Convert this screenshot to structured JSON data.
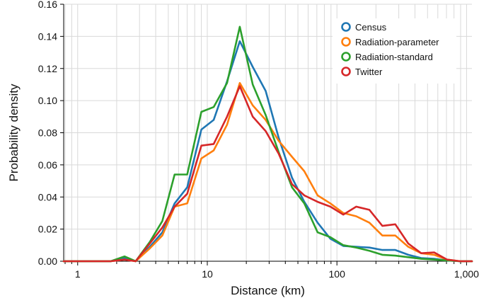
{
  "chart_data": {
    "type": "line",
    "xlabel": "Distance (km)",
    "ylabel": "Probability density",
    "x_scale": "log",
    "xlim": [
      0.78,
      1100
    ],
    "ylim": [
      0,
      0.16
    ],
    "grid": true,
    "legend_position": "top-right",
    "x_tick_labels": [
      {
        "value": 1,
        "label": "1"
      },
      {
        "value": 10,
        "label": "10"
      },
      {
        "value": 100,
        "label": "100"
      },
      {
        "value": 1000,
        "label": "1,000"
      }
    ],
    "y_tick_labels": [
      {
        "value": 0,
        "label": "0.00"
      },
      {
        "value": 0.02,
        "label": "0.02"
      },
      {
        "value": 0.04,
        "label": "0.04"
      },
      {
        "value": 0.06,
        "label": "0.06"
      },
      {
        "value": 0.08,
        "label": "0.08"
      },
      {
        "value": 0.1,
        "label": "0.10"
      },
      {
        "value": 0.12,
        "label": "0.12"
      },
      {
        "value": 0.14,
        "label": "0.14"
      },
      {
        "value": 0.16,
        "label": "0.16"
      }
    ],
    "series": [
      {
        "name": "Census",
        "color": "#1f77b4",
        "points": [
          [
            0.78,
            0
          ],
          [
            1.8,
            0
          ],
          [
            2.3,
            0.002
          ],
          [
            2.8,
            0
          ],
          [
            3.6,
            0.009
          ],
          [
            4.5,
            0.018
          ],
          [
            5.6,
            0.036
          ],
          [
            7.0,
            0.046
          ],
          [
            9.0,
            0.082
          ],
          [
            11.2,
            0.088
          ],
          [
            14.2,
            0.112
          ],
          [
            17.8,
            0.137
          ],
          [
            22.4,
            0.121
          ],
          [
            28.2,
            0.106
          ],
          [
            35.5,
            0.077
          ],
          [
            45,
            0.052
          ],
          [
            56,
            0.037
          ],
          [
            71,
            0.024
          ],
          [
            89,
            0.014
          ],
          [
            112,
            0.0095
          ],
          [
            141,
            0.009
          ],
          [
            178,
            0.0085
          ],
          [
            224,
            0.007
          ],
          [
            282,
            0.007
          ],
          [
            355,
            0.004
          ],
          [
            447,
            0.002
          ],
          [
            562,
            0.0015
          ],
          [
            708,
            0.0005
          ],
          [
            891,
            0
          ],
          [
            1100,
            0
          ]
        ]
      },
      {
        "name": "Radiation-parameter",
        "color": "#ff7f0e",
        "points": [
          [
            0.78,
            0
          ],
          [
            1.8,
            0
          ],
          [
            2.3,
            0.001
          ],
          [
            2.8,
            0
          ],
          [
            3.6,
            0.008
          ],
          [
            4.5,
            0.016
          ],
          [
            5.6,
            0.034
          ],
          [
            7.0,
            0.036
          ],
          [
            9.0,
            0.064
          ],
          [
            11.2,
            0.069
          ],
          [
            14.2,
            0.085
          ],
          [
            17.8,
            0.111
          ],
          [
            22.4,
            0.097
          ],
          [
            28.2,
            0.088
          ],
          [
            35.5,
            0.075
          ],
          [
            45,
            0.065
          ],
          [
            56,
            0.056
          ],
          [
            71,
            0.041
          ],
          [
            89,
            0.036
          ],
          [
            112,
            0.03
          ],
          [
            141,
            0.028
          ],
          [
            178,
            0.024
          ],
          [
            224,
            0.016
          ],
          [
            282,
            0.016
          ],
          [
            355,
            0.009
          ],
          [
            447,
            0.005
          ],
          [
            562,
            0.004
          ],
          [
            708,
            0.001
          ],
          [
            891,
            0
          ],
          [
            1100,
            0
          ]
        ]
      },
      {
        "name": "Radiation-standard",
        "color": "#2ca02c",
        "points": [
          [
            0.78,
            0
          ],
          [
            1.8,
            0
          ],
          [
            2.3,
            0.003
          ],
          [
            2.8,
            0
          ],
          [
            3.6,
            0.012
          ],
          [
            4.5,
            0.025
          ],
          [
            5.6,
            0.054
          ],
          [
            7.0,
            0.054
          ],
          [
            9.0,
            0.093
          ],
          [
            11.2,
            0.096
          ],
          [
            14.2,
            0.111
          ],
          [
            17.8,
            0.146
          ],
          [
            22.4,
            0.11
          ],
          [
            28.2,
            0.091
          ],
          [
            35.5,
            0.068
          ],
          [
            45,
            0.046
          ],
          [
            56,
            0.036
          ],
          [
            71,
            0.018
          ],
          [
            89,
            0.015
          ],
          [
            112,
            0.01
          ],
          [
            141,
            0.0085
          ],
          [
            178,
            0.0065
          ],
          [
            224,
            0.004
          ],
          [
            282,
            0.0035
          ],
          [
            355,
            0.0025
          ],
          [
            447,
            0.0015
          ],
          [
            562,
            0.001
          ],
          [
            708,
            0.0005
          ],
          [
            891,
            0
          ],
          [
            1100,
            0
          ]
        ]
      },
      {
        "name": "Twitter",
        "color": "#d62728",
        "points": [
          [
            0.78,
            0
          ],
          [
            1.8,
            0
          ],
          [
            2.3,
            0.001
          ],
          [
            2.8,
            0
          ],
          [
            3.6,
            0.011
          ],
          [
            4.5,
            0.021
          ],
          [
            5.6,
            0.034
          ],
          [
            7.0,
            0.042
          ],
          [
            9.0,
            0.072
          ],
          [
            11.2,
            0.073
          ],
          [
            14.2,
            0.09
          ],
          [
            17.8,
            0.109
          ],
          [
            22.4,
            0.09
          ],
          [
            28.2,
            0.081
          ],
          [
            35.5,
            0.067
          ],
          [
            45,
            0.048
          ],
          [
            56,
            0.041
          ],
          [
            71,
            0.037
          ],
          [
            89,
            0.034
          ],
          [
            112,
            0.029
          ],
          [
            141,
            0.034
          ],
          [
            178,
            0.032
          ],
          [
            224,
            0.022
          ],
          [
            282,
            0.023
          ],
          [
            355,
            0.011
          ],
          [
            447,
            0.005
          ],
          [
            562,
            0.0055
          ],
          [
            708,
            0.001
          ],
          [
            891,
            0
          ],
          [
            1100,
            0
          ]
        ]
      }
    ]
  }
}
